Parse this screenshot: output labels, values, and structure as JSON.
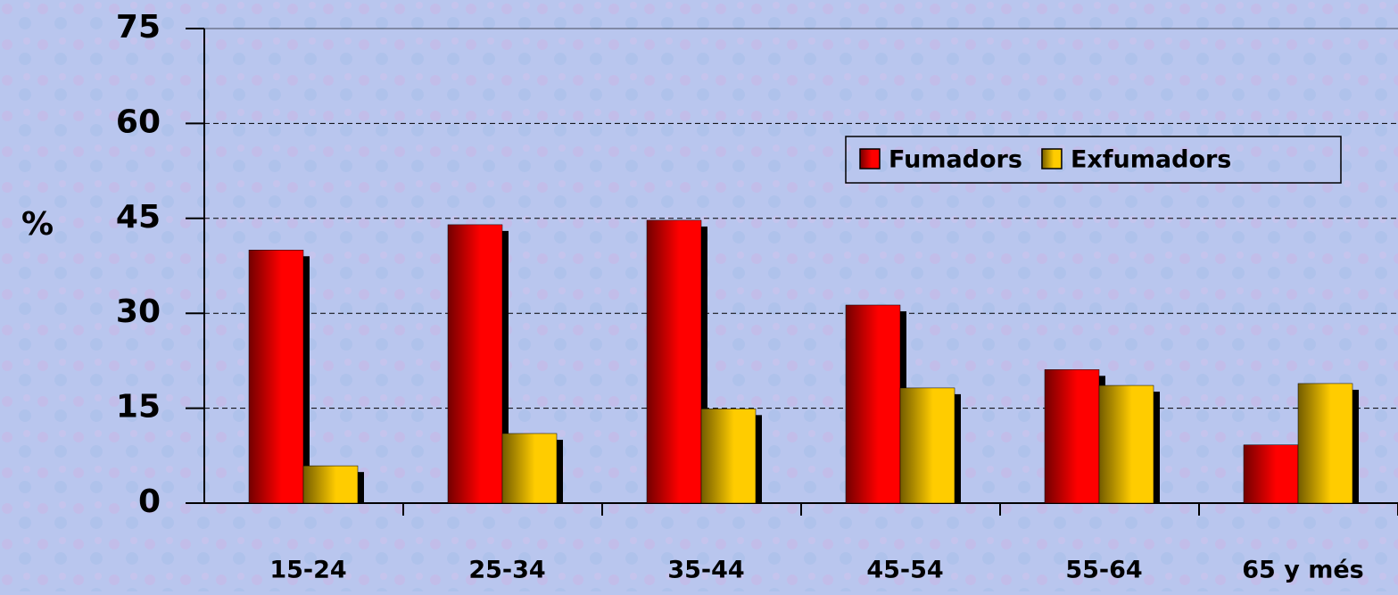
{
  "chart_data": {
    "type": "bar",
    "y_label": "%",
    "categories": [
      "15-24",
      "25-34",
      "35-44",
      "45-54",
      "55-64",
      "65 y més"
    ],
    "series": [
      {
        "name": "Fumadors",
        "color": "#ff0000",
        "values": [
          40.0,
          44.0,
          44.7,
          31.3,
          21.1,
          9.2
        ]
      },
      {
        "name": "Exfumadors",
        "color": "#ffcc00",
        "values": [
          5.9,
          11.0,
          14.9,
          18.2,
          18.6,
          18.9
        ]
      }
    ],
    "ylim": [
      0,
      75
    ],
    "yticks": [
      0,
      15,
      30,
      45,
      60,
      75
    ],
    "grid": true,
    "legend": "upper right"
  }
}
